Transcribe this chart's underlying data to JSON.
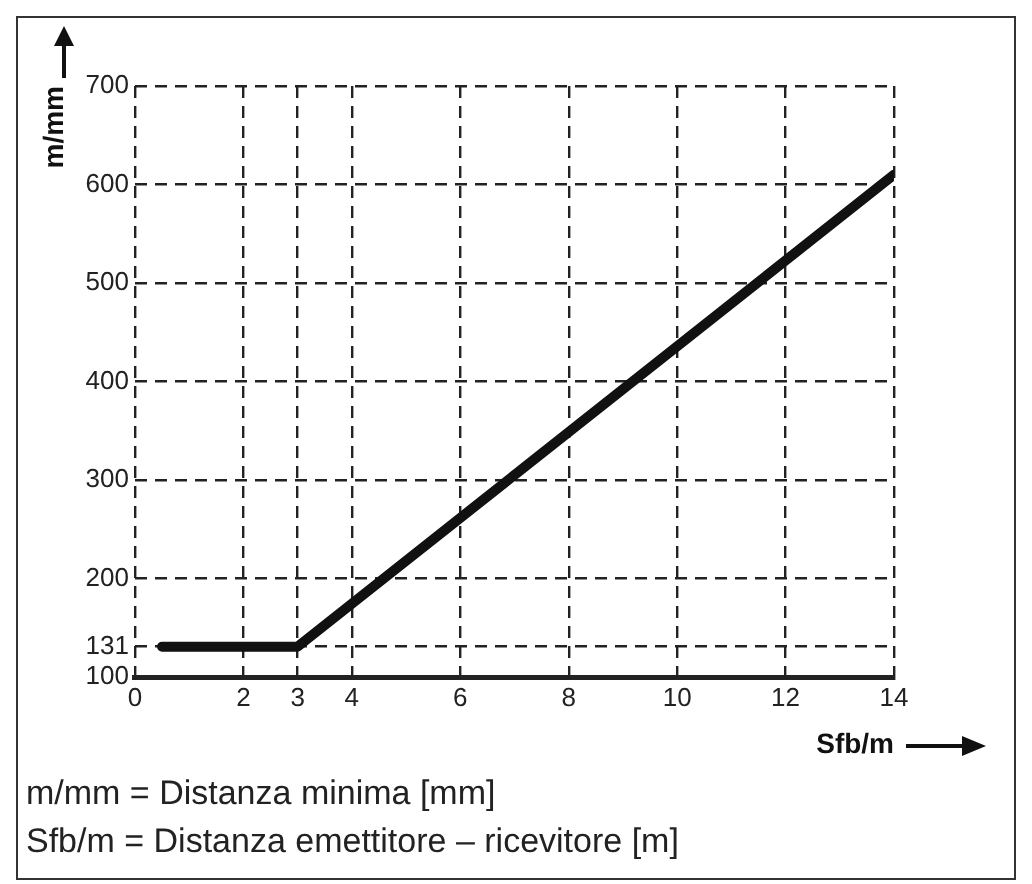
{
  "chart_data": {
    "type": "line",
    "xlabel": "Sfb/m",
    "ylabel": "m/mm",
    "series": [
      {
        "color": "#111111",
        "x": [
          0.5,
          3,
          14
        ],
        "values": [
          131,
          131,
          610
        ]
      }
    ],
    "xlim": [
      0,
      14
    ],
    "xticks": [
      0,
      2,
      3,
      4,
      6,
      8,
      10,
      12,
      14
    ],
    "ylim": [
      100,
      700
    ],
    "yticks": [
      100,
      131,
      200,
      300,
      400,
      500,
      600,
      700
    ],
    "grid": true,
    "legend": false,
    "marker": "none",
    "line_style": "solid",
    "annotations": [
      "m/mm = Distanza minima [mm]",
      "Sfb/m = Distanza emettitore – ricevitore [m]"
    ]
  }
}
